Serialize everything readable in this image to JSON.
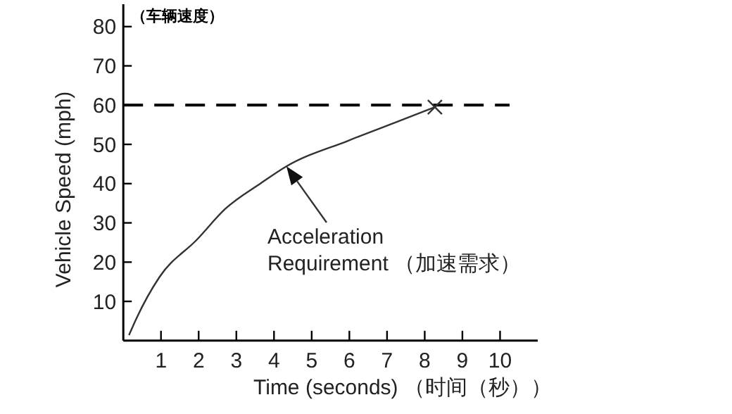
{
  "chart_data": {
    "type": "line",
    "title": "（车辆速度）",
    "xlabel": "Time (seconds) （时间（秒））",
    "ylabel": "Vehicle Speed (mph)",
    "xlim": [
      0,
      11
    ],
    "ylim": [
      0,
      85.7
    ],
    "xticks": [
      1,
      2,
      3,
      4,
      5,
      6,
      7,
      8,
      9,
      10
    ],
    "yticks": [
      10,
      20,
      30,
      40,
      50,
      60,
      70,
      80
    ],
    "series": [
      {
        "color": "#333333",
        "marker": "none",
        "x": [
          0.15,
          0.34,
          0.96,
          1.96,
          2.71,
          3.65,
          4.33,
          5.96,
          7.2,
          8.27
        ],
        "values": [
          1.4,
          5.5,
          16.2,
          25.8,
          33.6,
          40.1,
          44.4,
          50.9,
          55.5,
          59.5
        ]
      },
      {
        "type": "scatter",
        "color": "#333333",
        "marker": "cross",
        "x": [
          8.27
        ],
        "values": [
          59.5
        ]
      }
    ],
    "ref_lines": [
      {
        "axis": "y",
        "value": 60,
        "color": "#000000",
        "line_style": "dashed"
      }
    ],
    "annotations": [
      {
        "text": "Acceleration\nRequirement （加速需求）",
        "x": 4.33,
        "y": 44.4
      }
    ]
  }
}
